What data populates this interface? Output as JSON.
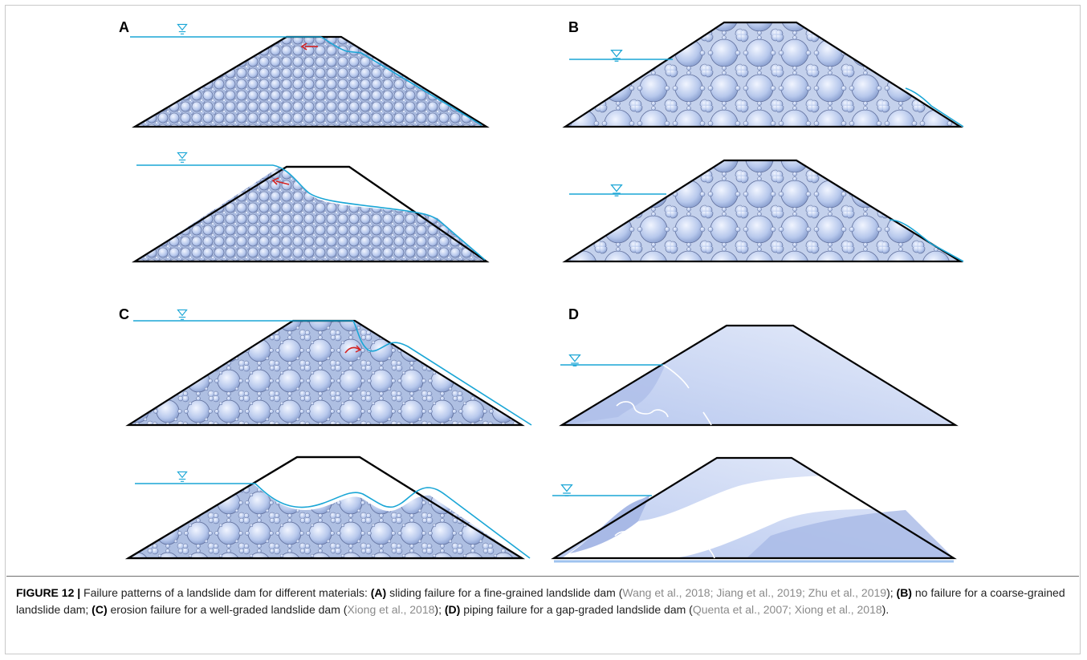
{
  "figure": {
    "panels": [
      {
        "id": "A",
        "label": "A"
      },
      {
        "id": "B",
        "label": "B"
      },
      {
        "id": "C",
        "label": "C"
      },
      {
        "id": "D",
        "label": "D"
      }
    ],
    "colors": {
      "water": "#1aa6d6",
      "outline": "#000000",
      "particle_fill": "#b9c9ea",
      "particle_edge": "#5a6a9a",
      "matrix_fill": "#cfdaf2",
      "arrow": "#d62020"
    },
    "icons": [
      "water-level-symbol",
      "movement-arrow"
    ]
  },
  "caption": {
    "figure_label": "FIGURE 12 |",
    "intro": " Failure patterns of a landslide dam for different materials: ",
    "a_tag": "(A)",
    "a_text": " sliding failure for a fine-grained landslide dam (",
    "a_cites": "Wang et al., 2018; Jiang et al., 2019; Zhu et al., 2019",
    "a_close": "); ",
    "b_tag": "(B)",
    "b_text": " no failure for a coarse-grained landslide dam; ",
    "c_tag": "(C)",
    "c_text": " erosion failure for a well-graded landslide dam (",
    "c_cites": "Xiong et al., 2018",
    "c_close": "); ",
    "d_tag": "(D)",
    "d_text": " piping failure for a gap-graded landslide dam (",
    "d_cites": "Quenta et al., 2007; Xiong et al., 2018",
    "d_close": ")."
  }
}
